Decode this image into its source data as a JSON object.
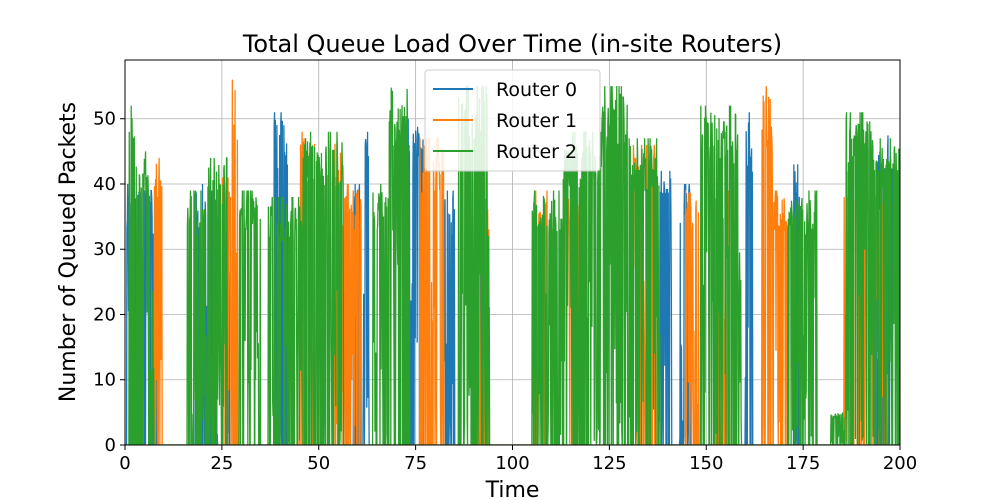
{
  "chart_data": {
    "type": "line",
    "title": "Total Queue Load Over Time (in-site Routers)",
    "xlabel": "Time",
    "ylabel": "Number of Queued Packets",
    "xlim": [
      0,
      200
    ],
    "ylim": [
      0,
      59
    ],
    "xticks": [
      0,
      25,
      50,
      75,
      100,
      125,
      150,
      175,
      200
    ],
    "yticks": [
      0,
      10,
      20,
      30,
      40,
      50
    ],
    "grid": true,
    "legend_position": "top-center",
    "series": [
      {
        "name": "Router 0",
        "color": "#1f77b4",
        "bursts": [
          {
            "x": [
              0.5,
              4
            ],
            "peak": 40
          },
          {
            "x": [
              5,
              8
            ],
            "peak": 39
          },
          {
            "x": [
              18,
              21
            ],
            "peak": 40
          },
          {
            "x": [
              21,
              24
            ],
            "peak": 39
          },
          {
            "x": [
              26,
              27
            ],
            "peak": 27
          },
          {
            "x": [
              38.5,
              41
            ],
            "peak": 51
          },
          {
            "x": [
              41,
              42
            ],
            "peak": 49
          },
          {
            "x": [
              59,
              61
            ],
            "peak": 40
          },
          {
            "x": [
              61.5,
              63
            ],
            "peak": 48
          },
          {
            "x": [
              73,
              75.5
            ],
            "peak": 50
          },
          {
            "x": [
              75.5,
              77
            ],
            "peak": 49
          },
          {
            "x": [
              82,
              85
            ],
            "peak": 39
          },
          {
            "x": [
              91,
              93.5
            ],
            "peak": 35
          },
          {
            "x": [
              138,
              141
            ],
            "peak": 42
          },
          {
            "x": [
              143,
              146
            ],
            "peak": 40
          },
          {
            "x": [
              160,
              162
            ],
            "peak": 51
          },
          {
            "x": [
              172.5,
              174
            ],
            "peak": 43
          },
          {
            "x": [
              194,
              198
            ],
            "peak": 49
          }
        ]
      },
      {
        "name": "Router 1",
        "color": "#ff7f0e",
        "bursts": [
          {
            "x": [
              7.5,
              9.5
            ],
            "peak": 45
          },
          {
            "x": [
              25,
              27.5
            ],
            "peak": 41
          },
          {
            "x": [
              27.5,
              29.5
            ],
            "peak": 56
          },
          {
            "x": [
              45,
              49
            ],
            "peak": 48
          },
          {
            "x": [
              54,
              56
            ],
            "peak": 48
          },
          {
            "x": [
              56,
              61
            ],
            "peak": 40
          },
          {
            "x": [
              76,
              82.5
            ],
            "peak": 47
          },
          {
            "x": [
              91,
              94
            ],
            "peak": 39
          },
          {
            "x": [
              105.5,
              109
            ],
            "peak": 39
          },
          {
            "x": [
              114,
              118
            ],
            "peak": 39
          },
          {
            "x": [
              131,
              137
            ],
            "peak": 46
          },
          {
            "x": [
              144.5,
              148
            ],
            "peak": 40
          },
          {
            "x": [
              152,
              156
            ],
            "peak": 39
          },
          {
            "x": [
              164,
              167
            ],
            "peak": 55
          },
          {
            "x": [
              167,
              171
            ],
            "peak": 39
          },
          {
            "x": [
              185.5,
              188
            ],
            "peak": 43
          },
          {
            "x": [
              189,
              196.5
            ],
            "peak": 40
          }
        ]
      },
      {
        "name": "Router 2",
        "color": "#2ca02c",
        "bursts": [
          {
            "x": [
              1,
              3
            ],
            "peak": 52
          },
          {
            "x": [
              3,
              7.5
            ],
            "peak": 45
          },
          {
            "x": [
              16,
              21
            ],
            "peak": 39
          },
          {
            "x": [
              21,
              26.5
            ],
            "peak": 44
          },
          {
            "x": [
              29.5,
              35
            ],
            "peak": 39
          },
          {
            "x": [
              37,
              46
            ],
            "peak": 38
          },
          {
            "x": [
              46,
              56.5
            ],
            "peak": 48
          },
          {
            "x": [
              64,
              68
            ],
            "peak": 40
          },
          {
            "x": [
              68,
              73.5
            ],
            "peak": 56
          },
          {
            "x": [
              86,
              94
            ],
            "peak": 55
          },
          {
            "x": [
              105,
              113
            ],
            "peak": 39
          },
          {
            "x": [
              113,
              123
            ],
            "peak": 48
          },
          {
            "x": [
              123,
              130
            ],
            "peak": 55
          },
          {
            "x": [
              130,
              138
            ],
            "peak": 47
          },
          {
            "x": [
              148.5,
              159
            ],
            "peak": 52
          },
          {
            "x": [
              171,
              178.5
            ],
            "peak": 39
          },
          {
            "x": [
              182,
              186
            ],
            "peak": 5
          },
          {
            "x": [
              186,
              193
            ],
            "peak": 51
          },
          {
            "x": [
              193,
              200
            ],
            "peak": 47
          }
        ]
      }
    ]
  }
}
